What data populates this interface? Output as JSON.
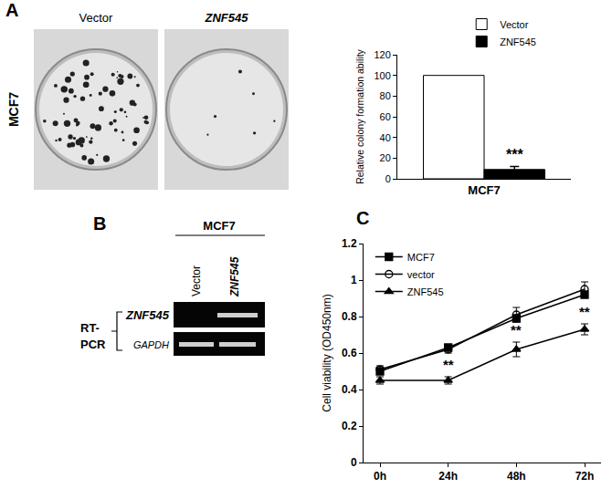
{
  "chart_data": [
    {
      "type": "bar",
      "y_label": "Relative colony formation ability",
      "categories": [
        "MCF7"
      ],
      "series": [
        {
          "name": "Vector",
          "color": "#ffffff",
          "values": [
            100
          ]
        },
        {
          "name": "ZNF545",
          "color": "#000000",
          "values": [
            9
          ],
          "errors": [
            3
          ]
        }
      ],
      "ylim": [
        0,
        120
      ],
      "yticks": [
        0,
        20,
        40,
        60,
        80,
        100,
        120
      ],
      "grid": false,
      "legend": "top",
      "annotations": [
        {
          "text": "***",
          "series": "ZNF545",
          "category": "MCF7"
        }
      ]
    },
    {
      "type": "line",
      "y_label": "Cell viability (OD450nm)",
      "categories": [
        "0h",
        "24h",
        "48h",
        "72h"
      ],
      "series": [
        {
          "name": "MCF7",
          "color": "#000000",
          "marker": "square",
          "line_style": "solid",
          "values": [
            0.5,
            0.63,
            0.79,
            0.92
          ]
        },
        {
          "name": "vector",
          "color": "#000000",
          "marker": "open circle",
          "line_style": "solid",
          "values": [
            0.51,
            0.62,
            0.81,
            0.95
          ],
          "errors": [
            0.02,
            0.02,
            0.04,
            0.04
          ]
        },
        {
          "name": "ZNF545",
          "color": "#000000",
          "marker": "triangle",
          "line_style": "solid",
          "values": [
            0.45,
            0.45,
            0.62,
            0.73
          ],
          "errors": [
            0.02,
            0.02,
            0.04,
            0.03
          ]
        }
      ],
      "ylim": [
        0,
        1.2
      ],
      "yticks": [
        0,
        0.2,
        0.4,
        0.6,
        0.8,
        1,
        1.2
      ],
      "grid": false,
      "legend": "top left",
      "annotations": [
        {
          "text": "**",
          "series": "ZNF545",
          "category": "24h"
        },
        {
          "text": "**",
          "series": "ZNF545",
          "category": "48h"
        },
        {
          "text": "**",
          "series": "ZNF545",
          "category": "72h"
        }
      ]
    }
  ],
  "panels": {
    "A": {
      "label": "A",
      "cell_line": "MCF7",
      "plates": [
        "Vector",
        "ZNF545"
      ]
    },
    "B": {
      "label": "B",
      "cell_line": "MCF7",
      "lanes": [
        "Vector",
        "ZNF545"
      ],
      "method": [
        "RT-",
        "PCR"
      ],
      "genes": [
        "ZNF545",
        "GAPDH"
      ]
    },
    "C": {
      "label": "C"
    }
  }
}
